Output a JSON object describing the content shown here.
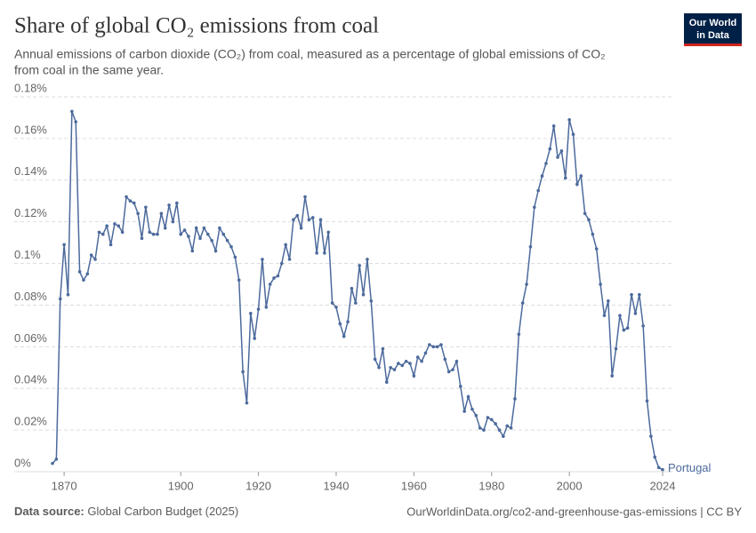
{
  "chart_data": {
    "type": "line",
    "title": "Share of global CO₂ emissions from coal",
    "subtitle_lines": [
      "Annual emissions of carbon dioxide (CO₂) from coal, measured as a percentage of global emissions of CO₂",
      "from coal in the same year."
    ],
    "logo": [
      "Our World",
      "in Data"
    ],
    "source_label": "Data source:",
    "source": "Global Carbon Budget (2025)",
    "footer_right": "OurWorldinData.org/co2-and-greenhouse-gas-emissions | CC BY",
    "xlim": [
      1867,
      2024
    ],
    "xticks": [
      1870,
      1900,
      1920,
      1940,
      1960,
      1980,
      2000,
      2024
    ],
    "ylim": [
      0,
      0.18
    ],
    "yticks": [
      {
        "value": 0,
        "label": "0%"
      },
      {
        "value": 0.02,
        "label": "0.02%"
      },
      {
        "value": 0.04,
        "label": "0.04%"
      },
      {
        "value": 0.06,
        "label": "0.06%"
      },
      {
        "value": 0.08,
        "label": "0.08%"
      },
      {
        "value": 0.1,
        "label": "0.1%"
      },
      {
        "value": 0.12,
        "label": "0.12%"
      },
      {
        "value": 0.14,
        "label": "0.14%"
      },
      {
        "value": 0.16,
        "label": "0.16%"
      },
      {
        "value": 0.18,
        "label": "0.18%"
      }
    ],
    "grid": true,
    "x": [
      1867,
      1868,
      1869,
      1870,
      1871,
      1872,
      1873,
      1874,
      1875,
      1876,
      1877,
      1878,
      1879,
      1880,
      1881,
      1882,
      1883,
      1884,
      1885,
      1886,
      1887,
      1888,
      1889,
      1890,
      1891,
      1892,
      1893,
      1894,
      1895,
      1896,
      1897,
      1898,
      1899,
      1900,
      1901,
      1902,
      1903,
      1904,
      1905,
      1906,
      1907,
      1908,
      1909,
      1910,
      1911,
      1912,
      1913,
      1914,
      1915,
      1916,
      1917,
      1918,
      1919,
      1920,
      1921,
      1922,
      1923,
      1924,
      1925,
      1926,
      1927,
      1928,
      1929,
      1930,
      1931,
      1932,
      1933,
      1934,
      1935,
      1936,
      1937,
      1938,
      1939,
      1940,
      1941,
      1942,
      1943,
      1944,
      1945,
      1946,
      1947,
      1948,
      1949,
      1950,
      1951,
      1952,
      1953,
      1954,
      1955,
      1956,
      1957,
      1958,
      1959,
      1960,
      1961,
      1962,
      1963,
      1964,
      1965,
      1966,
      1967,
      1968,
      1969,
      1970,
      1971,
      1972,
      1973,
      1974,
      1975,
      1976,
      1977,
      1978,
      1979,
      1980,
      1981,
      1982,
      1983,
      1984,
      1985,
      1986,
      1987,
      1988,
      1989,
      1990,
      1991,
      1992,
      1993,
      1994,
      1995,
      1996,
      1997,
      1998,
      1999,
      2000,
      2001,
      2002,
      2003,
      2004,
      2005,
      2006,
      2007,
      2008,
      2009,
      2010,
      2011,
      2012,
      2013,
      2014,
      2015,
      2016,
      2017,
      2018,
      2019,
      2020,
      2021,
      2022,
      2023,
      2024
    ],
    "series": [
      {
        "name": "Portugal",
        "color": "#4c6a9c",
        "values": [
          0.004,
          0.006,
          0.083,
          0.109,
          0.085,
          0.173,
          0.168,
          0.096,
          0.092,
          0.095,
          0.104,
          0.102,
          0.115,
          0.114,
          0.118,
          0.109,
          0.119,
          0.118,
          0.115,
          0.132,
          0.13,
          0.129,
          0.124,
          0.112,
          0.127,
          0.115,
          0.114,
          0.114,
          0.124,
          0.117,
          0.128,
          0.12,
          0.129,
          0.114,
          0.116,
          0.113,
          0.106,
          0.117,
          0.112,
          0.117,
          0.114,
          0.111,
          0.106,
          0.117,
          0.114,
          0.111,
          0.108,
          0.103,
          0.092,
          0.048,
          0.033,
          0.076,
          0.064,
          0.078,
          0.102,
          0.079,
          0.09,
          0.093,
          0.094,
          0.1,
          0.109,
          0.102,
          0.121,
          0.123,
          0.117,
          0.132,
          0.121,
          0.122,
          0.105,
          0.121,
          0.105,
          0.115,
          0.081,
          0.079,
          0.071,
          0.065,
          0.072,
          0.088,
          0.081,
          0.099,
          0.085,
          0.102,
          0.082,
          0.054,
          0.05,
          0.059,
          0.043,
          0.05,
          0.049,
          0.052,
          0.051,
          0.053,
          0.052,
          0.046,
          0.055,
          0.053,
          0.057,
          0.061,
          0.06,
          0.06,
          0.061,
          0.054,
          0.048,
          0.049,
          0.053,
          0.041,
          0.029,
          0.036,
          0.03,
          0.027,
          0.021,
          0.02,
          0.026,
          0.025,
          0.023,
          0.02,
          0.017,
          0.022,
          0.021,
          0.035,
          0.066,
          0.081,
          0.09,
          0.108,
          0.127,
          0.135,
          0.142,
          0.148,
          0.155,
          0.166,
          0.151,
          0.154,
          0.141,
          0.169,
          0.162,
          0.138,
          0.142,
          0.124,
          0.121,
          0.114,
          0.107,
          0.09,
          0.075,
          0.082,
          0.046,
          0.059,
          0.075,
          0.068,
          0.069,
          0.085,
          0.076,
          0.085,
          0.07,
          0.034,
          0.017,
          0.007,
          0.002,
          0.001
        ]
      }
    ]
  }
}
